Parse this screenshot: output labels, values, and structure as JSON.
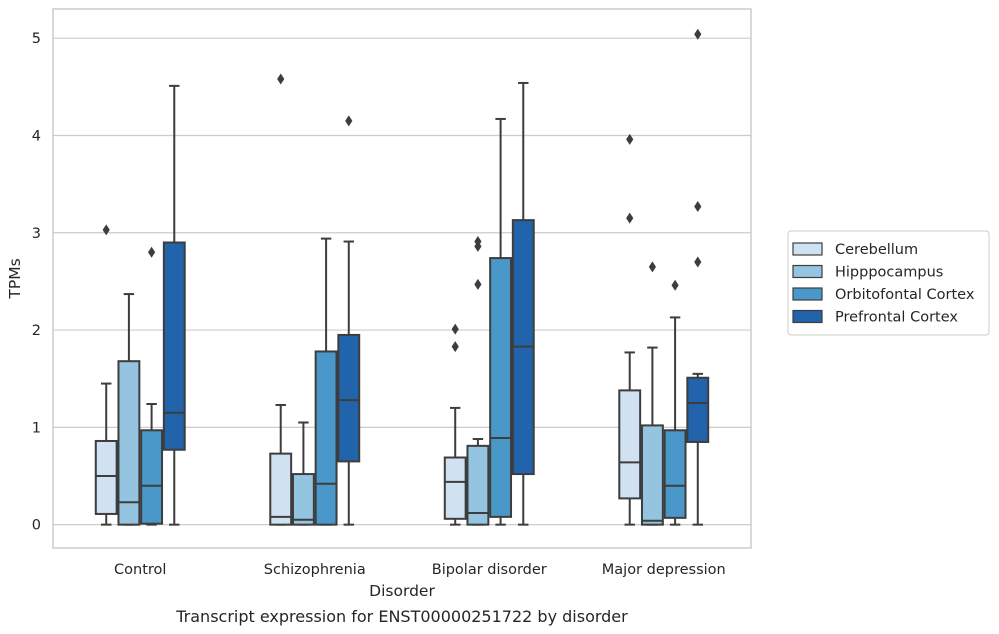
{
  "chart_data": {
    "type": "box",
    "caption": "Transcript expression for ENST00000251722 by disorder",
    "xlabel": "Disorder",
    "ylabel": "TPMs",
    "ylim": [
      -0.24,
      5.3
    ],
    "yticks": [
      0,
      1,
      2,
      3,
      4,
      5
    ],
    "grid": true,
    "legend_position": "right",
    "categories": [
      "Control",
      "Schizophrenia",
      "Bipolar disorder",
      "Major depression"
    ],
    "series": [
      {
        "name": "Cerebellum",
        "color": "#d0e1f2",
        "boxes": [
          {
            "low": 0.0,
            "q1": 0.11,
            "median": 0.5,
            "q3": 0.86,
            "high": 1.45,
            "outliers": [
              3.03
            ]
          },
          {
            "low": 0.0,
            "q1": 0.0,
            "median": 0.08,
            "q3": 0.73,
            "high": 1.23,
            "outliers": [
              4.58
            ]
          },
          {
            "low": 0.0,
            "q1": 0.06,
            "median": 0.44,
            "q3": 0.69,
            "high": 1.2,
            "outliers": [
              1.83,
              2.01
            ]
          },
          {
            "low": 0.0,
            "q1": 0.27,
            "median": 0.64,
            "q3": 1.38,
            "high": 1.77,
            "outliers": [
              3.15,
              3.96
            ]
          }
        ]
      },
      {
        "name": "Hipppocampus",
        "color": "#94c4df",
        "boxes": [
          {
            "low": 0.0,
            "q1": 0.0,
            "median": 0.23,
            "q3": 1.68,
            "high": 2.37,
            "outliers": []
          },
          {
            "low": 0.0,
            "q1": 0.0,
            "median": 0.05,
            "q3": 0.52,
            "high": 1.05,
            "outliers": []
          },
          {
            "low": 0.0,
            "q1": 0.0,
            "median": 0.12,
            "q3": 0.81,
            "high": 0.88,
            "outliers": [
              2.47,
              2.86,
              2.91
            ]
          },
          {
            "low": 0.0,
            "q1": 0.0,
            "median": 0.04,
            "q3": 1.02,
            "high": 1.82,
            "outliers": [
              2.65
            ]
          }
        ]
      },
      {
        "name": "Orbitofontal Cortex",
        "color": "#4a98c9",
        "boxes": [
          {
            "low": 0.0,
            "q1": 0.01,
            "median": 0.4,
            "q3": 0.97,
            "high": 1.24,
            "outliers": [
              2.8
            ]
          },
          {
            "low": 0.0,
            "q1": 0.0,
            "median": 0.42,
            "q3": 1.78,
            "high": 2.94,
            "outliers": []
          },
          {
            "low": 0.0,
            "q1": 0.08,
            "median": 0.89,
            "q3": 2.74,
            "high": 4.17,
            "outliers": []
          },
          {
            "low": 0.0,
            "q1": 0.07,
            "median": 0.4,
            "q3": 0.97,
            "high": 2.13,
            "outliers": [
              2.46
            ]
          }
        ]
      },
      {
        "name": "Prefrontal Cortex",
        "color": "#2164ab",
        "boxes": [
          {
            "low": 0.0,
            "q1": 0.77,
            "median": 1.15,
            "q3": 2.9,
            "high": 4.51,
            "outliers": []
          },
          {
            "low": 0.0,
            "q1": 0.65,
            "median": 1.28,
            "q3": 1.95,
            "high": 2.91,
            "outliers": [
              4.15
            ]
          },
          {
            "low": 0.0,
            "q1": 0.52,
            "median": 1.83,
            "q3": 3.13,
            "high": 4.54,
            "outliers": []
          },
          {
            "low": 0.0,
            "q1": 0.85,
            "median": 1.25,
            "q3": 1.51,
            "high": 1.55,
            "outliers": [
              2.7,
              3.27,
              5.04
            ]
          }
        ]
      }
    ]
  }
}
